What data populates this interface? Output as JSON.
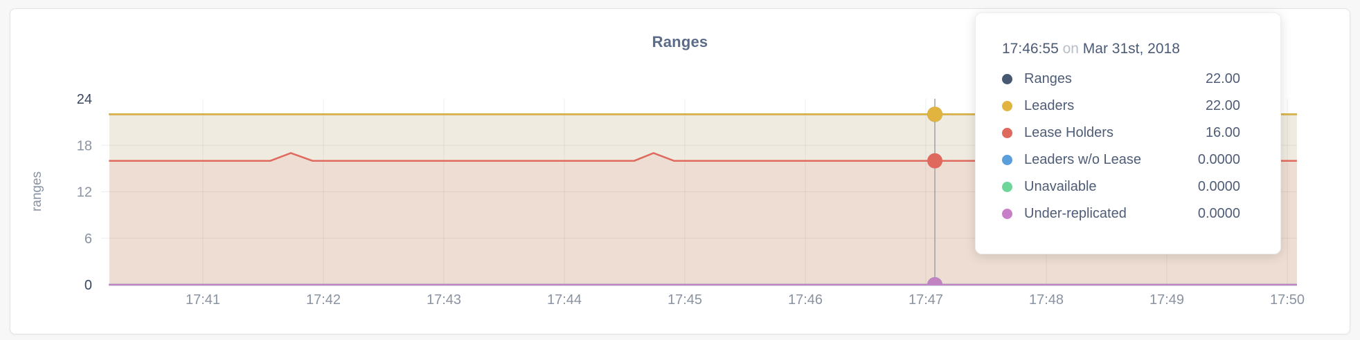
{
  "page": {
    "background": "#f7f7f7",
    "card_border": "#e3e3e3"
  },
  "chart_data": {
    "type": "area",
    "title": "Ranges",
    "ylabel": "ranges",
    "xlabel": "",
    "ylim": [
      0,
      24
    ],
    "yticks": [
      0,
      6,
      12,
      18,
      24
    ],
    "ytick_major": [
      0,
      24
    ],
    "grid": true,
    "xticks": [
      {
        "label": "17:41",
        "m": 0
      },
      {
        "label": "17:42",
        "m": 1
      },
      {
        "label": "17:43",
        "m": 2
      },
      {
        "label": "17:44",
        "m": 3
      },
      {
        "label": "17:45",
        "m": 4
      },
      {
        "label": "17:46",
        "m": 5
      },
      {
        "label": "17:47",
        "m": 6
      },
      {
        "label": "17:48",
        "m": 7
      },
      {
        "label": "17:49",
        "m": 8
      },
      {
        "label": "17:50",
        "m": 9
      }
    ],
    "x_domain_min": [
      -0.78,
      9.08
    ],
    "series": [
      {
        "name": "Ranges",
        "color": "#475872",
        "fill_opacity": 0.08,
        "points": [
          [
            -0.78,
            22
          ],
          [
            9.08,
            22
          ]
        ]
      },
      {
        "name": "Leaders",
        "color": "#e0b43f",
        "fill_opacity": 0.1,
        "points": [
          [
            -0.78,
            22
          ],
          [
            9.08,
            22
          ]
        ]
      },
      {
        "name": "Lease Holders",
        "color": "#e0695e",
        "fill_opacity": 0.11,
        "points": [
          [
            -0.78,
            16
          ],
          [
            0.56,
            16
          ],
          [
            0.73,
            17
          ],
          [
            0.91,
            16
          ],
          [
            3.58,
            16
          ],
          [
            3.74,
            17
          ],
          [
            3.91,
            16
          ],
          [
            9.08,
            16
          ]
        ]
      },
      {
        "name": "Leaders w/o Lease",
        "color": "#5a9fdc",
        "fill_opacity": 0,
        "points": [
          [
            -0.78,
            0
          ],
          [
            9.08,
            0
          ]
        ]
      },
      {
        "name": "Unavailable",
        "color": "#6ed69a",
        "fill_opacity": 0,
        "points": [
          [
            -0.78,
            0
          ],
          [
            9.08,
            0
          ]
        ]
      },
      {
        "name": "Under-replicated",
        "color": "#c183c1",
        "fill_opacity": 0,
        "points": [
          [
            -0.78,
            0
          ],
          [
            9.08,
            0
          ]
        ]
      }
    ],
    "hover": {
      "x_min": 6.075,
      "snapped_time": "17:46:55",
      "dots": [
        {
          "series": "Ranges",
          "value": 22
        },
        {
          "series": "Leaders",
          "value": 22
        },
        {
          "series": "Lease Holders",
          "value": 16
        },
        {
          "series": "Leaders w/o Lease",
          "value": 0
        },
        {
          "series": "Unavailable",
          "value": 0
        },
        {
          "series": "Under-replicated",
          "value": 0
        }
      ]
    }
  },
  "tooltip": {
    "time": "17:46:55",
    "conjunction": "on",
    "date": "Mar 31st, 2018",
    "rows": [
      {
        "label": "Ranges",
        "value": "22.00",
        "color": "#475872"
      },
      {
        "label": "Leaders",
        "value": "22.00",
        "color": "#e0b43f"
      },
      {
        "label": "Lease Holders",
        "value": "16.00",
        "color": "#e0695e"
      },
      {
        "label": "Leaders w/o Lease",
        "value": "0.0000",
        "color": "#5a9fdc"
      },
      {
        "label": "Unavailable",
        "value": "0.0000",
        "color": "#6ed69a"
      },
      {
        "label": "Under-replicated",
        "value": "0.0000",
        "color": "#c77fc7"
      }
    ]
  }
}
